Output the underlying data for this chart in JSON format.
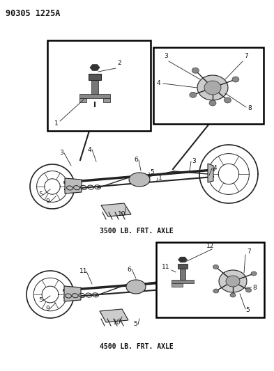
{
  "bg_color": "#ffffff",
  "part_number": "90305 1225A",
  "part_number_fontsize": 8.5,
  "part_number_font": "monospace",
  "part_number_bold": true,
  "title1": "3500 LB. FRT. AXLE",
  "title1_fontsize": 7,
  "title2": "4500 LB. FRT. AXLE",
  "title2_fontsize": 7,
  "label_fontsize": 6.5,
  "line_color": "#222222",
  "text_color": "#111111"
}
